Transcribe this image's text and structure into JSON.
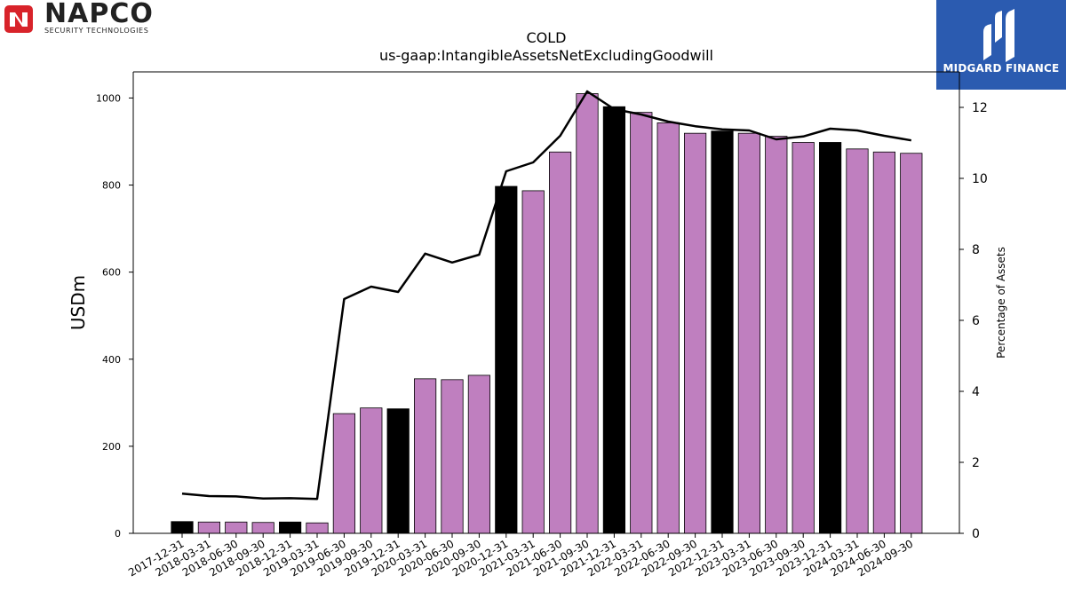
{
  "logos": {
    "left": {
      "name": "NAPCO",
      "subtitle": "SECURITY TECHNOLOGIES"
    },
    "right": {
      "name": "MIDGARD FINANCE"
    }
  },
  "colors": {
    "bar_default": "#bf7fbf",
    "bar_highlight": "#000000",
    "line": "#000000",
    "logo_right_bg": "#2b5bb0",
    "logo_left_red": "#d8232a"
  },
  "chart_data": {
    "type": "bar",
    "title": "COLD",
    "subtitle": "us-gaap:IntangibleAssetsNetExcludingGoodwill",
    "ylabel": "USDm",
    "y2label": "Percentage of Assets",
    "ylim": [
      0,
      1060
    ],
    "y2lim": [
      0,
      13.0
    ],
    "yticks": [
      0,
      200,
      400,
      600,
      800,
      1000
    ],
    "y2ticks": [
      0,
      2,
      4,
      6,
      8,
      10,
      12
    ],
    "categories": [
      "2017-12-31",
      "2018-03-31",
      "2018-06-30",
      "2018-09-30",
      "2018-12-31",
      "2019-03-31",
      "2019-06-30",
      "2019-09-30",
      "2019-12-31",
      "2020-03-31",
      "2020-06-30",
      "2020-09-30",
      "2020-12-31",
      "2021-03-31",
      "2021-06-30",
      "2021-09-30",
      "2021-12-31",
      "2022-03-31",
      "2022-06-30",
      "2022-09-30",
      "2022-12-31",
      "2023-03-31",
      "2023-06-30",
      "2023-09-30",
      "2023-12-31",
      "2024-03-31",
      "2024-06-30",
      "2024-09-30"
    ],
    "series": [
      {
        "type": "bar",
        "values": [
          27,
          26,
          26,
          25,
          26,
          24,
          275,
          288,
          286,
          355,
          353,
          363,
          797,
          787,
          876,
          1010,
          980,
          967,
          943,
          919,
          924,
          919,
          912,
          898,
          898,
          883,
          876,
          873
        ],
        "highlight": [
          true,
          false,
          false,
          false,
          true,
          false,
          false,
          false,
          true,
          false,
          false,
          false,
          true,
          false,
          false,
          false,
          true,
          false,
          false,
          false,
          true,
          false,
          false,
          false,
          true,
          false,
          false,
          false
        ]
      },
      {
        "type": "line",
        "axis": "right",
        "values": [
          1.12,
          1.05,
          1.04,
          0.98,
          0.99,
          0.97,
          6.6,
          6.95,
          6.8,
          7.88,
          7.63,
          7.85,
          10.2,
          10.45,
          11.2,
          12.45,
          11.95,
          11.8,
          11.6,
          11.47,
          11.38,
          11.35,
          11.1,
          11.18,
          11.4,
          11.35,
          11.2,
          11.07
        ]
      }
    ],
    "grid": false,
    "legend": "none"
  }
}
